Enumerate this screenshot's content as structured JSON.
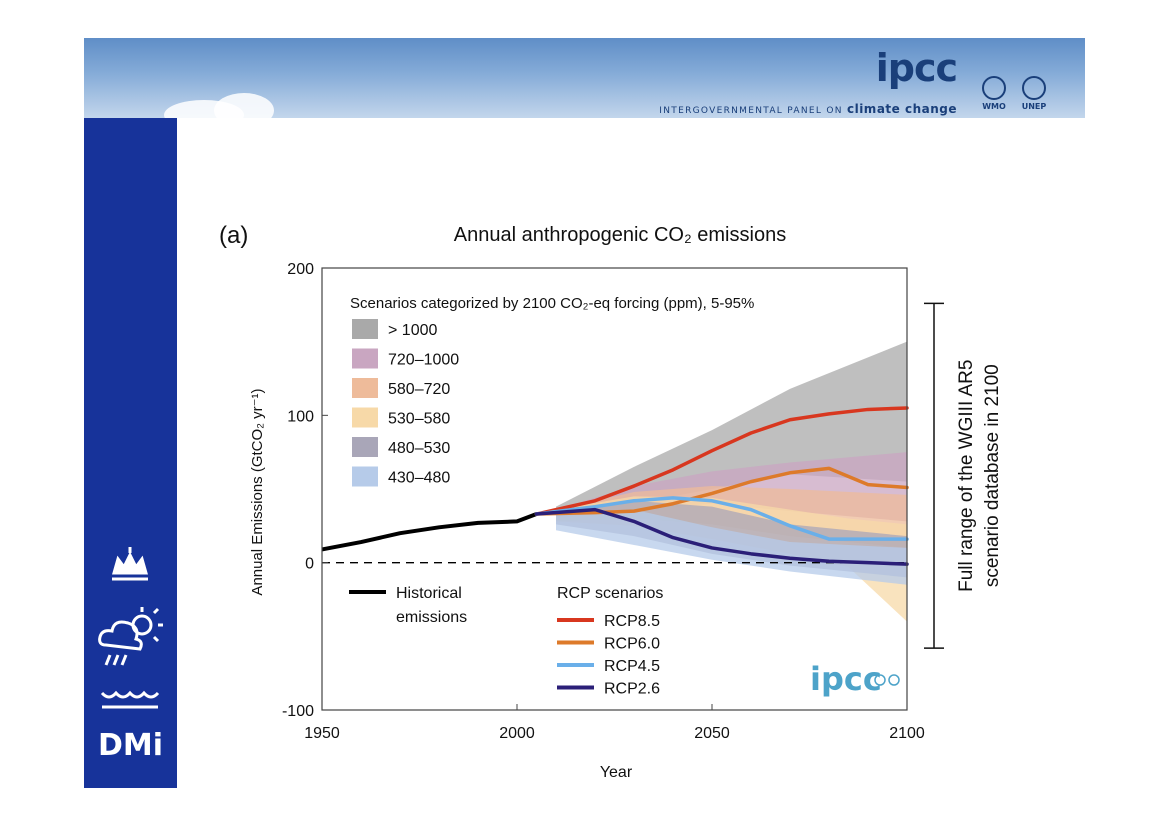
{
  "header": {
    "logo_text": "ipcc",
    "tagline_prefix": "INTERGOVERNMENTAL PANEL ON",
    "tagline_emphasis": "climate change",
    "partners": [
      "WMO",
      "UNEP"
    ]
  },
  "sidebar": {
    "brand": "DMi",
    "icons": [
      "crown-icon",
      "weather-icon",
      "waves-icon"
    ]
  },
  "colors": {
    "sidebar": "#17339a",
    "rcp85": "#d8371f",
    "rcp60": "#dd7a2a",
    "rcp45": "#6aafe9",
    "rcp26": "#2b1f78",
    "historical": "#000000"
  },
  "chart_data": {
    "type": "area",
    "panel_label": "(a)",
    "title": "Annual anthropogenic CO₂ emissions",
    "xlabel": "Year",
    "ylabel": "Annual Emissions (GtCO₂ yr⁻¹)",
    "xlim": [
      1950,
      2100
    ],
    "ylim": [
      -100,
      200
    ],
    "xticks": [
      1950,
      2000,
      2050,
      2100
    ],
    "yticks": [
      -100,
      0,
      100,
      200
    ],
    "legend_title": "Scenarios categorized by 2100 CO₂-eq forcing (ppm), 5-95%",
    "ranges": [
      {
        "name": "> 1000",
        "color": "#a9a9a9",
        "x": [
          2010,
          2030,
          2050,
          2070,
          2100
        ],
        "lower": [
          32,
          40,
          50,
          60,
          55
        ],
        "upper": [
          38,
          65,
          90,
          118,
          150
        ]
      },
      {
        "name": "720–1000",
        "color": "#c9a6c1",
        "x": [
          2010,
          2030,
          2050,
          2070,
          2100
        ],
        "lower": [
          30,
          36,
          40,
          35,
          28
        ],
        "upper": [
          36,
          52,
          62,
          68,
          75
        ]
      },
      {
        "name": "580–720",
        "color": "#eebb9a",
        "x": [
          2010,
          2030,
          2050,
          2070,
          2100
        ],
        "lower": [
          28,
          30,
          26,
          18,
          10
        ],
        "upper": [
          36,
          48,
          52,
          50,
          46
        ]
      },
      {
        "name": "530–580",
        "color": "#f7d9a8",
        "x": [
          2010,
          2030,
          2050,
          2070,
          2085,
          2100
        ],
        "lower": [
          28,
          25,
          16,
          6,
          -3,
          -40
        ],
        "upper": [
          36,
          45,
          44,
          36,
          30,
          26
        ]
      },
      {
        "name": "480–530",
        "color": "#a9a6b8",
        "x": [
          2010,
          2030,
          2050,
          2070,
          2100
        ],
        "lower": [
          26,
          18,
          6,
          -2,
          -10
        ],
        "upper": [
          36,
          42,
          38,
          26,
          18
        ]
      },
      {
        "name": "430–480",
        "color": "#b6cbe9",
        "x": [
          2010,
          2030,
          2050,
          2070,
          2100
        ],
        "lower": [
          22,
          12,
          2,
          -6,
          -15
        ],
        "upper": [
          34,
          36,
          24,
          14,
          10
        ]
      }
    ],
    "historical": {
      "name": "Historical emissions",
      "x": [
        1950,
        1960,
        1970,
        1980,
        1990,
        2000,
        2005
      ],
      "y": [
        9,
        14,
        20,
        24,
        27,
        28,
        33
      ]
    },
    "rcp_title": "RCP scenarios",
    "rcp_series": [
      {
        "name": "RCP8.5",
        "color": "#d8371f",
        "x": [
          2005,
          2020,
          2030,
          2040,
          2050,
          2060,
          2070,
          2080,
          2090,
          2100
        ],
        "y": [
          33,
          42,
          52,
          63,
          76,
          88,
          97,
          101,
          104,
          105
        ]
      },
      {
        "name": "RCP6.0",
        "color": "#dd7a2a",
        "x": [
          2005,
          2020,
          2030,
          2040,
          2050,
          2060,
          2070,
          2080,
          2090,
          2100
        ],
        "y": [
          33,
          34,
          35,
          40,
          47,
          55,
          61,
          64,
          53,
          51
        ]
      },
      {
        "name": "RCP4.5",
        "color": "#6aafe9",
        "x": [
          2005,
          2020,
          2030,
          2040,
          2050,
          2060,
          2070,
          2080,
          2090,
          2100
        ],
        "y": [
          33,
          38,
          42,
          44,
          42,
          36,
          25,
          16,
          16,
          16
        ]
      },
      {
        "name": "RCP2.6",
        "color": "#2b1f78",
        "x": [
          2005,
          2020,
          2030,
          2040,
          2050,
          2060,
          2070,
          2080,
          2090,
          2100
        ],
        "y": [
          33,
          36,
          28,
          17,
          10,
          6,
          3,
          1,
          0,
          -1
        ]
      }
    ],
    "side_annotation": [
      "Full range of the WGIII AR5",
      "scenario database in 2100"
    ],
    "annotation_range": [
      -58,
      176
    ],
    "watermark": "ipcc"
  }
}
